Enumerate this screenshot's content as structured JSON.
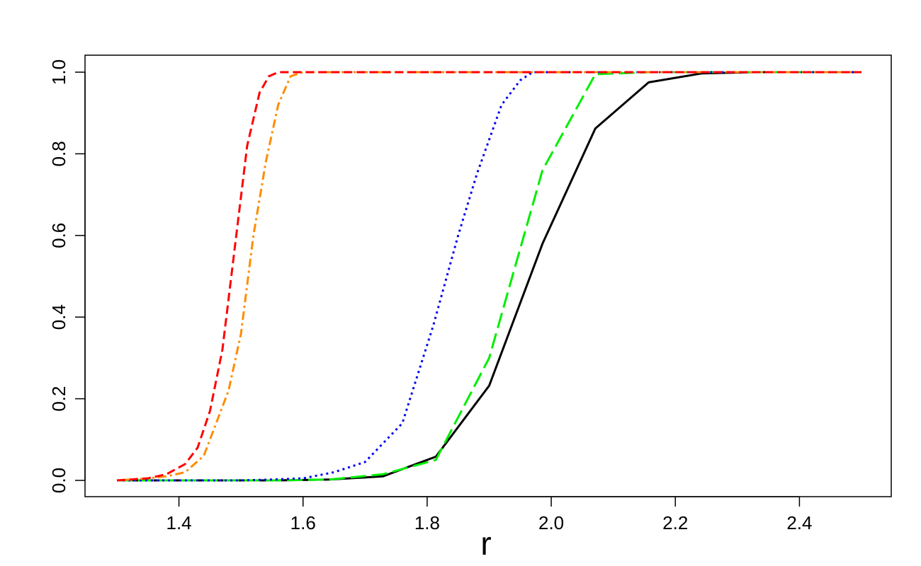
{
  "chart_data": {
    "type": "line",
    "title": "",
    "xlabel": "r",
    "ylabel": "",
    "xlim": [
      1.3,
      2.5
    ],
    "ylim": [
      0,
      1
    ],
    "xticks": [
      "1.4",
      "1.6",
      "1.8",
      "2.0",
      "2.2",
      "2.4"
    ],
    "yticks": [
      "0.0",
      "0.2",
      "0.4",
      "0.6",
      "0.8",
      "1.0"
    ],
    "grid": false,
    "legend": "none",
    "series": [
      {
        "color": "#000000",
        "dash": "solid",
        "x": [
          1.3,
          1.386,
          1.471,
          1.557,
          1.643,
          1.729,
          1.814,
          1.9,
          1.986,
          2.071,
          2.157,
          2.243,
          2.329,
          2.414,
          2.5
        ],
        "y": [
          0,
          0,
          0,
          0,
          0.002,
          0.01,
          0.058,
          0.232,
          0.58,
          0.862,
          0.975,
          0.997,
          1.0,
          1.0,
          1.0
        ]
      },
      {
        "color": "#00ee00",
        "dash": "longdash",
        "x": [
          1.3,
          1.386,
          1.471,
          1.557,
          1.643,
          1.729,
          1.814,
          1.9,
          1.986,
          2.071,
          2.157,
          2.243,
          2.329,
          2.414,
          2.5
        ],
        "y": [
          0,
          0,
          0,
          0,
          0.002,
          0.015,
          0.05,
          0.3,
          0.76,
          0.995,
          1.0,
          1.0,
          1.0,
          1.0,
          1.0
        ]
      },
      {
        "color": "#0000ee",
        "dash": "dotted",
        "x": [
          1.3,
          1.35,
          1.4,
          1.45,
          1.5,
          1.55,
          1.6,
          1.65,
          1.7,
          1.76,
          1.81,
          1.85,
          1.88,
          1.92,
          1.95,
          1.97,
          2.0,
          2.1,
          2.2,
          2.5
        ],
        "y": [
          0,
          0,
          0,
          0,
          0,
          0.002,
          0.005,
          0.02,
          0.045,
          0.14,
          0.38,
          0.6,
          0.75,
          0.92,
          0.98,
          1.0,
          1.0,
          1.0,
          1.0,
          1.0
        ]
      },
      {
        "color": "#ff8c00",
        "dash": "dotdash",
        "x": [
          1.3,
          1.35,
          1.38,
          1.41,
          1.44,
          1.46,
          1.48,
          1.5,
          1.52,
          1.54,
          1.56,
          1.58,
          1.6,
          1.7,
          1.8,
          2.0,
          2.5
        ],
        "y": [
          0,
          0.005,
          0.01,
          0.02,
          0.06,
          0.14,
          0.22,
          0.36,
          0.6,
          0.78,
          0.92,
          0.99,
          1.0,
          1.0,
          1.0,
          1.0,
          1.0
        ]
      },
      {
        "color": "#ff0000",
        "dash": "dashed",
        "x": [
          1.3,
          1.35,
          1.38,
          1.41,
          1.43,
          1.45,
          1.47,
          1.49,
          1.51,
          1.53,
          1.545,
          1.56,
          1.6,
          1.8,
          2.0,
          2.5
        ],
        "y": [
          0,
          0.005,
          0.015,
          0.04,
          0.08,
          0.17,
          0.32,
          0.57,
          0.82,
          0.95,
          0.99,
          1.0,
          1.0,
          1.0,
          1.0,
          1.0
        ]
      }
    ]
  }
}
